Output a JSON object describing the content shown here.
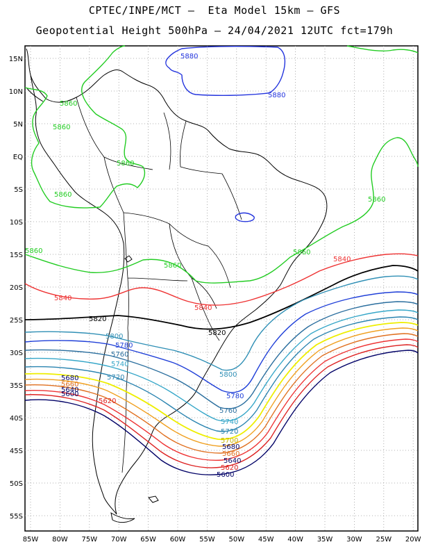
{
  "header": {
    "line1": "CPTEC/INPE/MCT –  Eta Model 15km – GFS",
    "line2": "Geopotential Height 500hPa – 24/04/2021 12UTC fct=179h"
  },
  "axes": {
    "lat_labels": [
      "15N",
      "10N",
      "5N",
      "EQ",
      "5S",
      "10S",
      "15S",
      "20S",
      "25S",
      "30S",
      "35S",
      "40S",
      "45S",
      "50S",
      "55S"
    ],
    "lon_labels": [
      "85W",
      "80W",
      "75W",
      "70W",
      "65W",
      "60W",
      "55W",
      "50W",
      "45W",
      "40W",
      "35W",
      "30W",
      "25W",
      "20W"
    ]
  },
  "colors": {
    "5880": "#2233dd",
    "5860": "#22cc22",
    "5840": "#ee3333",
    "5820": "#000000",
    "5800": "#2f8fb5",
    "5780": "#1f3fd8",
    "5760": "#2a6e9e",
    "5740": "#35a6c8",
    "5720": "#2a84b0",
    "5700": "#eeee00",
    "5680": "#f0a020",
    "5660": "#e07020",
    "5640": "#ee3333",
    "5620": "#dd2222",
    "5600": "#000066"
  },
  "contour_labels": [
    {
      "level": "5880",
      "text": "5880"
    },
    {
      "level": "5880",
      "text": "5880"
    },
    {
      "level": "5860",
      "text": "5860"
    },
    {
      "level": "5860",
      "text": "5860"
    },
    {
      "level": "5860",
      "text": "5860"
    },
    {
      "level": "5860",
      "text": "5860"
    },
    {
      "level": "5860",
      "text": "5860"
    },
    {
      "level": "5860",
      "text": "5860"
    },
    {
      "level": "5860",
      "text": "5860"
    },
    {
      "level": "5860",
      "text": "5860"
    },
    {
      "level": "5840",
      "text": "5840"
    },
    {
      "level": "5840",
      "text": "5840"
    },
    {
      "level": "5840",
      "text": "5840"
    },
    {
      "level": "5820",
      "text": "5820"
    },
    {
      "level": "5820",
      "text": "5820"
    },
    {
      "level": "5800",
      "text": "5800"
    },
    {
      "level": "5800",
      "text": "5800"
    },
    {
      "level": "5780",
      "text": "5780"
    },
    {
      "level": "5780",
      "text": "5780"
    },
    {
      "level": "5760",
      "text": "5760"
    },
    {
      "level": "5760",
      "text": "5760"
    },
    {
      "level": "5740",
      "text": "5740"
    },
    {
      "level": "5740",
      "text": "5740"
    },
    {
      "level": "5720",
      "text": "5720"
    },
    {
      "level": "5720",
      "text": "5720"
    },
    {
      "level": "5700",
      "text": "5700"
    },
    {
      "level": "5680",
      "text": "5680"
    },
    {
      "level": "5680",
      "text": "5680"
    },
    {
      "level": "5660",
      "text": "5660"
    },
    {
      "level": "5660",
      "text": "5660"
    },
    {
      "level": "5640",
      "text": "5640"
    },
    {
      "level": "5640",
      "text": "5640"
    },
    {
      "level": "5620",
      "text": "5620"
    },
    {
      "level": "5620",
      "text": "5620"
    },
    {
      "level": "5600",
      "text": "5600"
    },
    {
      "level": "5600",
      "text": "5600"
    }
  ]
}
